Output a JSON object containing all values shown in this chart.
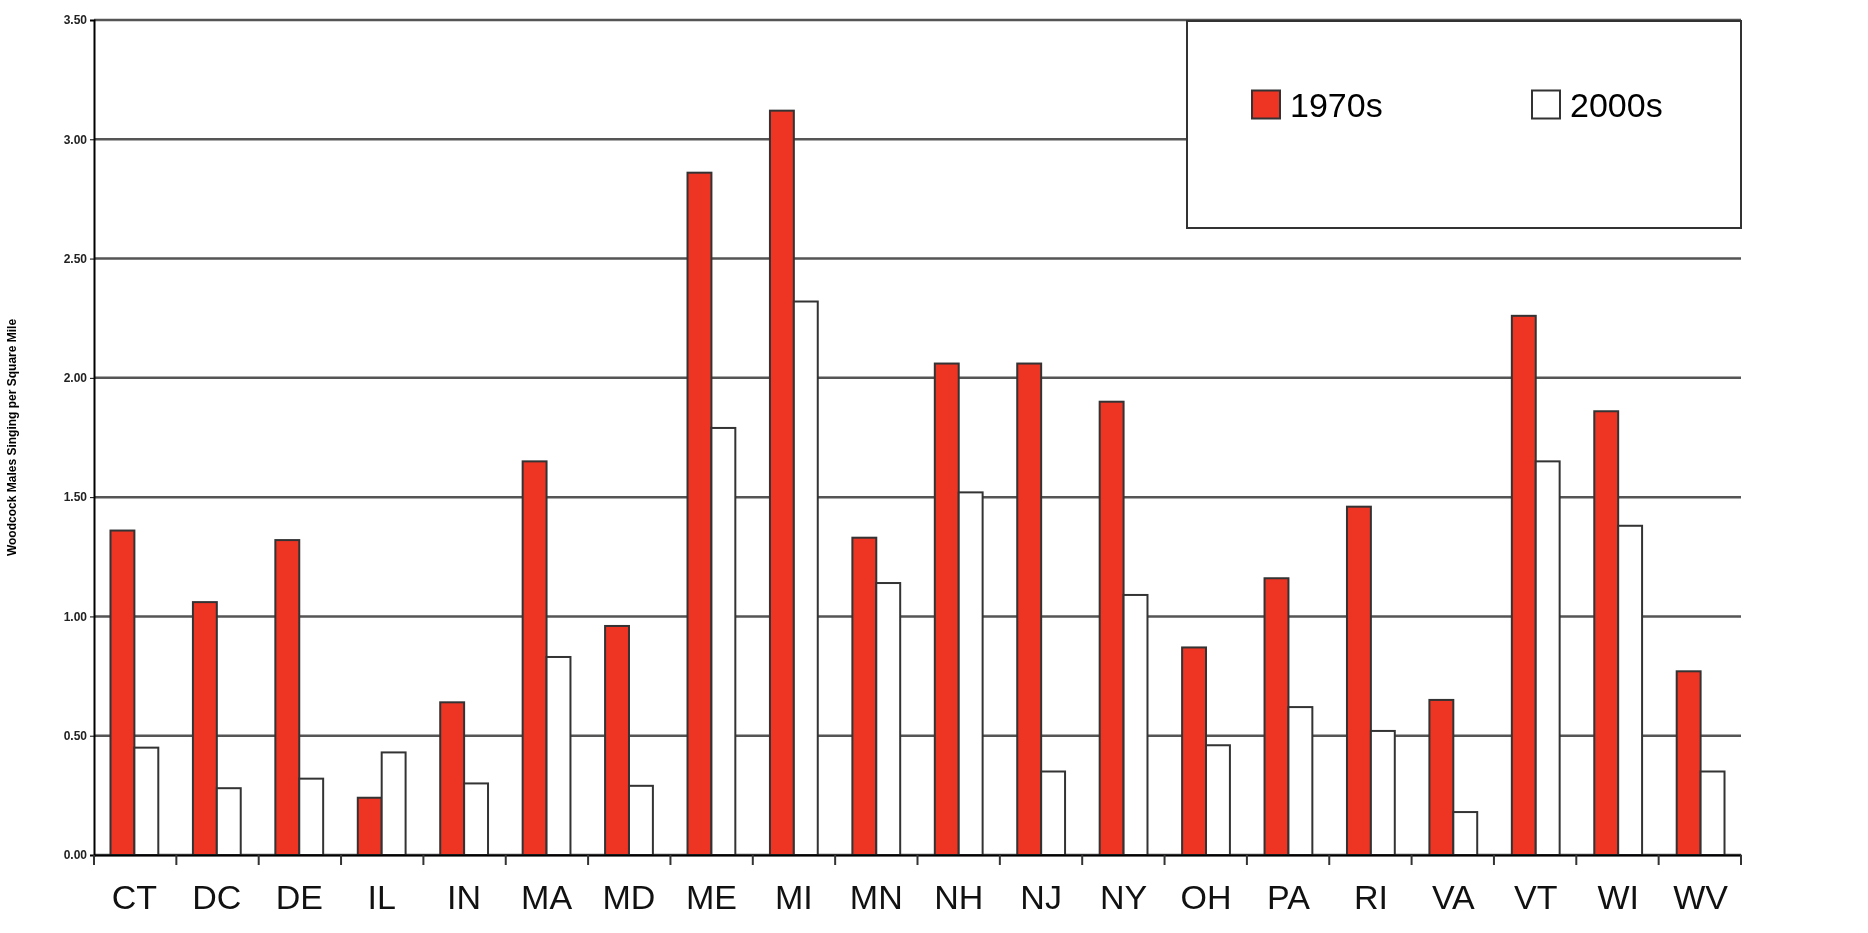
{
  "chart_data": {
    "type": "bar",
    "ylabel": "Woodcock Males Singing per Square Mile",
    "categories": [
      "CT",
      "DC",
      "DE",
      "IL",
      "IN",
      "MA",
      "MD",
      "ME",
      "MI",
      "MN",
      "NH",
      "NJ",
      "NY",
      "OH",
      "PA",
      "RI",
      "VA",
      "VT",
      "WI",
      "WV"
    ],
    "series": [
      {
        "name": "1970s",
        "color": "#ee3524",
        "values": [
          1.36,
          1.06,
          1.32,
          0.24,
          0.64,
          1.65,
          0.96,
          2.86,
          3.12,
          1.33,
          2.06,
          2.06,
          1.9,
          0.87,
          1.16,
          1.46,
          0.65,
          2.26,
          1.86,
          0.77
        ]
      },
      {
        "name": "2000s",
        "color": "#ffffff",
        "values": [
          0.45,
          0.28,
          0.32,
          0.43,
          0.3,
          0.83,
          0.29,
          1.79,
          2.32,
          1.14,
          1.52,
          0.35,
          1.09,
          0.46,
          0.62,
          0.52,
          0.18,
          1.65,
          1.38,
          0.35
        ]
      }
    ],
    "ylim": [
      0,
      3.5
    ],
    "yticks": [
      {
        "value": 0,
        "label": "0.00"
      },
      {
        "value": 0.5,
        "label": "0.50"
      },
      {
        "value": 1,
        "label": "1.00"
      },
      {
        "value": 1.5,
        "label": "1.50"
      },
      {
        "value": 2,
        "label": "2.00"
      },
      {
        "value": 2.5,
        "label": "2.50"
      },
      {
        "value": 3,
        "label": "3.00"
      },
      {
        "value": 3.5,
        "label": "3.50"
      }
    ],
    "grid": "y",
    "legend": "top right"
  }
}
